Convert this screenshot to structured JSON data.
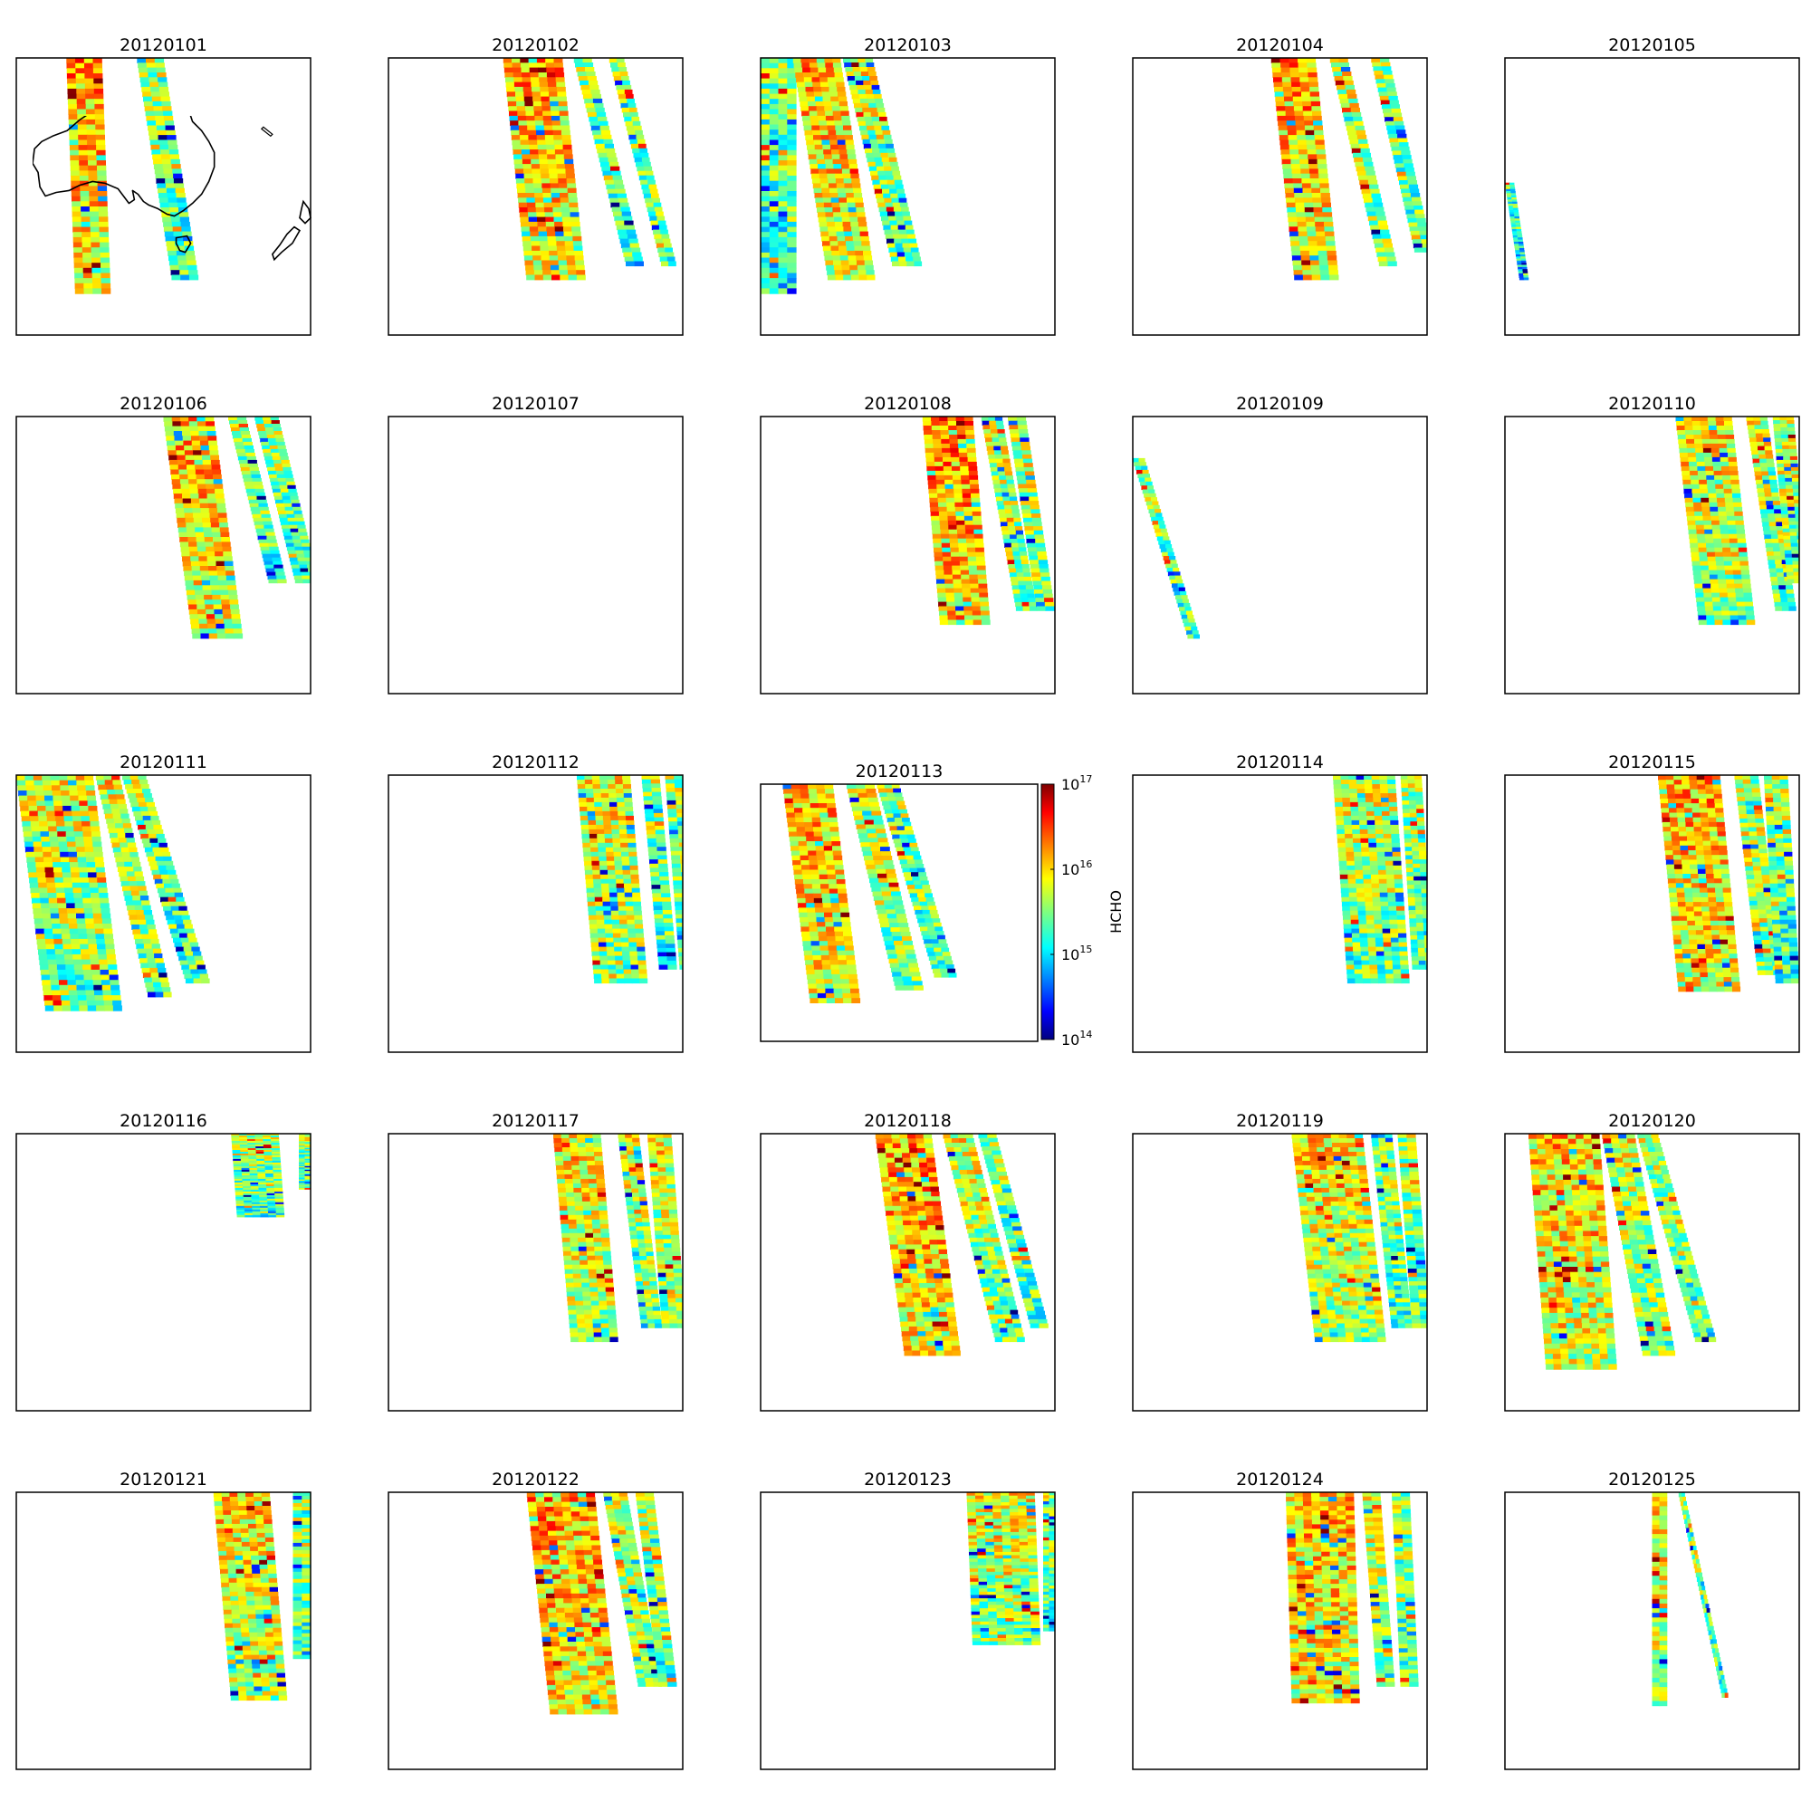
{
  "chart_data": {
    "type": "heatmap",
    "layout": "5x5 grid of map panels",
    "region": "Australia",
    "variable": "HCHO",
    "color_scale": "log",
    "colormap": "jet",
    "colorbar": {
      "label": "HCHO",
      "range": [
        100000000000000.0,
        1e+17
      ],
      "ticks": [
        {
          "base": "10",
          "exp": "17"
        },
        {
          "base": "10",
          "exp": "16"
        },
        {
          "base": "10",
          "exp": "15"
        },
        {
          "base": "10",
          "exp": "14"
        }
      ],
      "placement": "right of panel 20120113"
    },
    "panels": [
      {
        "title": "20120101",
        "swaths": [
          {
            "x0": 0.17,
            "x1": 0.29,
            "y0": 0.0,
            "y1": 0.85,
            "tilt": 0.03,
            "level": 0.72
          },
          {
            "x0": 0.41,
            "x1": 0.5,
            "y0": 0.0,
            "y1": 0.8,
            "tilt": 0.12,
            "level": 0.55
          }
        ]
      },
      {
        "title": "20120102",
        "swaths": [
          {
            "x0": 0.39,
            "x1": 0.59,
            "y0": 0.0,
            "y1": 0.8,
            "tilt": 0.08,
            "level": 0.72
          },
          {
            "x0": 0.63,
            "x1": 0.69,
            "y0": 0.0,
            "y1": 0.75,
            "tilt": 0.18,
            "level": 0.55
          },
          {
            "x0": 0.75,
            "x1": 0.8,
            "y0": 0.0,
            "y1": 0.75,
            "tilt": 0.18,
            "level": 0.55
          }
        ]
      },
      {
        "title": "20120103",
        "swaths": [
          {
            "x0": 0.0,
            "x1": 0.12,
            "y0": 0.0,
            "y1": 0.85,
            "tilt": 0.0,
            "level": 0.5
          },
          {
            "x0": 0.11,
            "x1": 0.27,
            "y0": 0.0,
            "y1": 0.8,
            "tilt": 0.12,
            "level": 0.7
          },
          {
            "x0": 0.28,
            "x1": 0.38,
            "y0": 0.0,
            "y1": 0.75,
            "tilt": 0.17,
            "level": 0.6
          }
        ]
      },
      {
        "title": "20120104",
        "swaths": [
          {
            "x0": 0.47,
            "x1": 0.62,
            "y0": 0.0,
            "y1": 0.8,
            "tilt": 0.08,
            "level": 0.72
          },
          {
            "x0": 0.67,
            "x1": 0.73,
            "y0": 0.0,
            "y1": 0.75,
            "tilt": 0.17,
            "level": 0.6
          },
          {
            "x0": 0.81,
            "x1": 0.87,
            "y0": 0.0,
            "y1": 0.7,
            "tilt": 0.15,
            "level": 0.55
          }
        ]
      },
      {
        "title": "20120105",
        "swaths": [
          {
            "x0": 0.0,
            "x1": 0.03,
            "y0": 0.45,
            "y1": 0.8,
            "tilt": 0.05,
            "level": 0.45
          }
        ]
      },
      {
        "title": "20120106",
        "swaths": [
          {
            "x0": 0.5,
            "x1": 0.67,
            "y0": 0.0,
            "y1": 0.8,
            "tilt": 0.1,
            "level": 0.7
          },
          {
            "x0": 0.72,
            "x1": 0.78,
            "y0": 0.0,
            "y1": 0.6,
            "tilt": 0.14,
            "level": 0.55
          },
          {
            "x0": 0.81,
            "x1": 0.89,
            "y0": 0.0,
            "y1": 0.6,
            "tilt": 0.14,
            "level": 0.55
          }
        ]
      },
      {
        "title": "20120107",
        "swaths": []
      },
      {
        "title": "20120108",
        "swaths": [
          {
            "x0": 0.55,
            "x1": 0.72,
            "y0": 0.0,
            "y1": 0.75,
            "tilt": 0.06,
            "level": 0.75
          },
          {
            "x0": 0.75,
            "x1": 0.82,
            "y0": 0.0,
            "y1": 0.7,
            "tilt": 0.12,
            "level": 0.6
          },
          {
            "x0": 0.84,
            "x1": 0.9,
            "y0": 0.0,
            "y1": 0.7,
            "tilt": 0.1,
            "level": 0.6
          }
        ]
      },
      {
        "title": "20120109",
        "swaths": [
          {
            "x0": 0.0,
            "x1": 0.04,
            "y0": 0.15,
            "y1": 0.8,
            "tilt": 0.19,
            "level": 0.55
          }
        ]
      },
      {
        "title": "20120110",
        "swaths": [
          {
            "x0": 0.58,
            "x1": 0.77,
            "y0": 0.0,
            "y1": 0.75,
            "tilt": 0.08,
            "level": 0.65
          },
          {
            "x0": 0.82,
            "x1": 0.89,
            "y0": 0.0,
            "y1": 0.7,
            "tilt": 0.1,
            "level": 0.6
          },
          {
            "x0": 0.91,
            "x1": 0.98,
            "y0": 0.0,
            "y1": 0.6,
            "tilt": 0.05,
            "level": 0.6
          }
        ]
      },
      {
        "title": "20120111",
        "swaths": [
          {
            "x0": 0.0,
            "x1": 0.26,
            "y0": 0.0,
            "y1": 0.85,
            "tilt": 0.1,
            "level": 0.6
          },
          {
            "x0": 0.27,
            "x1": 0.35,
            "y0": 0.0,
            "y1": 0.8,
            "tilt": 0.18,
            "level": 0.6
          },
          {
            "x0": 0.36,
            "x1": 0.44,
            "y0": 0.0,
            "y1": 0.75,
            "tilt": 0.22,
            "level": 0.55
          }
        ]
      },
      {
        "title": "20120112",
        "swaths": [
          {
            "x0": 0.64,
            "x1": 0.82,
            "y0": 0.0,
            "y1": 0.75,
            "tilt": 0.06,
            "level": 0.62
          },
          {
            "x0": 0.86,
            "x1": 0.92,
            "y0": 0.0,
            "y1": 0.7,
            "tilt": 0.06,
            "level": 0.55
          },
          {
            "x0": 0.94,
            "x1": 1.0,
            "y0": 0.0,
            "y1": 0.7,
            "tilt": 0.05,
            "level": 0.55
          }
        ]
      },
      {
        "title": "20120113",
        "swaths": [
          {
            "x0": 0.08,
            "x1": 0.26,
            "y0": 0.0,
            "y1": 0.85,
            "tilt": 0.1,
            "level": 0.7
          },
          {
            "x0": 0.31,
            "x1": 0.41,
            "y0": 0.0,
            "y1": 0.8,
            "tilt": 0.18,
            "level": 0.6
          },
          {
            "x0": 0.42,
            "x1": 0.5,
            "y0": 0.0,
            "y1": 0.75,
            "tilt": 0.21,
            "level": 0.55
          }
        ]
      },
      {
        "title": "20120114",
        "swaths": [
          {
            "x0": 0.68,
            "x1": 0.89,
            "y0": 0.0,
            "y1": 0.75,
            "tilt": 0.05,
            "level": 0.6
          },
          {
            "x0": 0.91,
            "x1": 0.98,
            "y0": 0.0,
            "y1": 0.7,
            "tilt": 0.04,
            "level": 0.55
          }
        ]
      },
      {
        "title": "20120115",
        "swaths": [
          {
            "x0": 0.52,
            "x1": 0.73,
            "y0": 0.0,
            "y1": 0.78,
            "tilt": 0.07,
            "level": 0.7
          },
          {
            "x0": 0.78,
            "x1": 0.86,
            "y0": 0.0,
            "y1": 0.72,
            "tilt": 0.08,
            "level": 0.6
          },
          {
            "x0": 0.88,
            "x1": 0.96,
            "y0": 0.0,
            "y1": 0.75,
            "tilt": 0.04,
            "level": 0.55
          }
        ]
      },
      {
        "title": "20120116",
        "swaths": [
          {
            "x0": 0.73,
            "x1": 0.89,
            "y0": 0.0,
            "y1": 0.3,
            "tilt": 0.02,
            "level": 0.55
          },
          {
            "x0": 0.96,
            "x1": 1.0,
            "y0": 0.0,
            "y1": 0.2,
            "tilt": 0.0,
            "level": 0.55
          }
        ]
      },
      {
        "title": "20120117",
        "swaths": [
          {
            "x0": 0.56,
            "x1": 0.72,
            "y0": 0.0,
            "y1": 0.75,
            "tilt": 0.06,
            "level": 0.65
          },
          {
            "x0": 0.78,
            "x1": 0.85,
            "y0": 0.0,
            "y1": 0.7,
            "tilt": 0.08,
            "level": 0.6
          },
          {
            "x0": 0.88,
            "x1": 0.96,
            "y0": 0.0,
            "y1": 0.7,
            "tilt": 0.05,
            "level": 0.6
          }
        ]
      },
      {
        "title": "20120118",
        "swaths": [
          {
            "x0": 0.39,
            "x1": 0.58,
            "y0": 0.0,
            "y1": 0.8,
            "tilt": 0.1,
            "level": 0.72
          },
          {
            "x0": 0.62,
            "x1": 0.72,
            "y0": 0.0,
            "y1": 0.75,
            "tilt": 0.18,
            "level": 0.6
          },
          {
            "x0": 0.74,
            "x1": 0.8,
            "y0": 0.0,
            "y1": 0.7,
            "tilt": 0.18,
            "level": 0.55
          }
        ]
      },
      {
        "title": "20120119",
        "swaths": [
          {
            "x0": 0.54,
            "x1": 0.78,
            "y0": 0.0,
            "y1": 0.75,
            "tilt": 0.08,
            "level": 0.65
          },
          {
            "x0": 0.81,
            "x1": 0.88,
            "y0": 0.0,
            "y1": 0.7,
            "tilt": 0.07,
            "level": 0.55
          },
          {
            "x0": 0.9,
            "x1": 0.96,
            "y0": 0.0,
            "y1": 0.7,
            "tilt": 0.05,
            "level": 0.55
          }
        ]
      },
      {
        "title": "20120120",
        "swaths": [
          {
            "x0": 0.08,
            "x1": 0.32,
            "y0": 0.0,
            "y1": 0.85,
            "tilt": 0.06,
            "level": 0.68
          },
          {
            "x0": 0.33,
            "x1": 0.44,
            "y0": 0.0,
            "y1": 0.8,
            "tilt": 0.14,
            "level": 0.6
          },
          {
            "x0": 0.45,
            "x1": 0.52,
            "y0": 0.0,
            "y1": 0.75,
            "tilt": 0.2,
            "level": 0.55
          }
        ]
      },
      {
        "title": "20120121",
        "swaths": [
          {
            "x0": 0.67,
            "x1": 0.86,
            "y0": 0.0,
            "y1": 0.75,
            "tilt": 0.06,
            "level": 0.65
          },
          {
            "x0": 0.94,
            "x1": 1.0,
            "y0": 0.0,
            "y1": 0.6,
            "tilt": 0.0,
            "level": 0.55
          }
        ]
      },
      {
        "title": "20120122",
        "swaths": [
          {
            "x0": 0.47,
            "x1": 0.7,
            "y0": 0.0,
            "y1": 0.8,
            "tilt": 0.08,
            "level": 0.72
          },
          {
            "x0": 0.73,
            "x1": 0.81,
            "y0": 0.0,
            "y1": 0.7,
            "tilt": 0.12,
            "level": 0.6
          },
          {
            "x0": 0.84,
            "x1": 0.9,
            "y0": 0.0,
            "y1": 0.7,
            "tilt": 0.08,
            "level": 0.55
          }
        ]
      },
      {
        "title": "20120123",
        "swaths": [
          {
            "x0": 0.7,
            "x1": 0.93,
            "y0": 0.0,
            "y1": 0.55,
            "tilt": 0.02,
            "level": 0.62
          },
          {
            "x0": 0.96,
            "x1": 1.0,
            "y0": 0.0,
            "y1": 0.5,
            "tilt": 0.0,
            "level": 0.55
          }
        ]
      },
      {
        "title": "20120124",
        "swaths": [
          {
            "x0": 0.52,
            "x1": 0.75,
            "y0": 0.0,
            "y1": 0.76,
            "tilt": 0.02,
            "level": 0.7
          },
          {
            "x0": 0.78,
            "x1": 0.84,
            "y0": 0.0,
            "y1": 0.7,
            "tilt": 0.05,
            "level": 0.6
          },
          {
            "x0": 0.88,
            "x1": 0.94,
            "y0": 0.0,
            "y1": 0.7,
            "tilt": 0.03,
            "level": 0.55
          }
        ]
      },
      {
        "title": "20120125",
        "swaths": [
          {
            "x0": 0.5,
            "x1": 0.55,
            "y0": 0.0,
            "y1": 0.77,
            "tilt": 0.0,
            "level": 0.65
          },
          {
            "x0": 0.59,
            "x1": 0.61,
            "y0": 0.0,
            "y1": 0.74,
            "tilt": 0.15,
            "level": 0.55
          }
        ]
      }
    ]
  }
}
